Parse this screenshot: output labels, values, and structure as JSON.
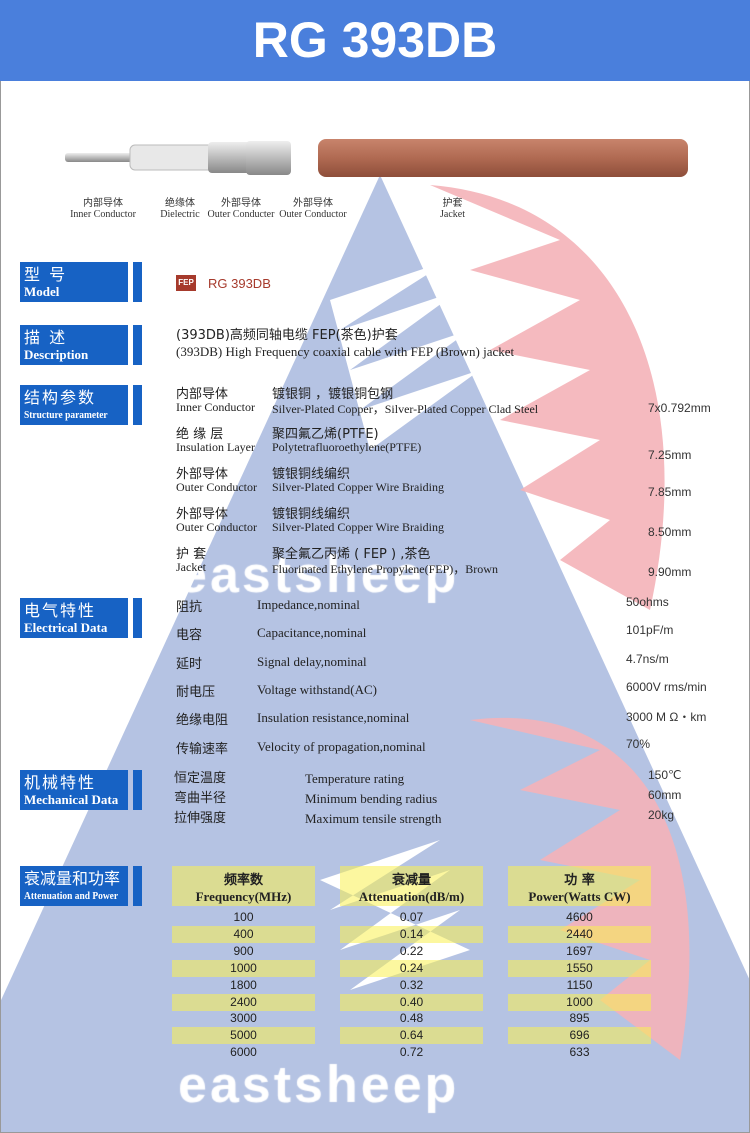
{
  "header": {
    "title": "RG 393DB"
  },
  "watermark": {
    "text": "eastsheep",
    "colors": {
      "blue": "#a8b8de",
      "pink": "#f4b3b8"
    }
  },
  "cable_labels": [
    {
      "cn": "内部导体",
      "en": "Inner Conductor"
    },
    {
      "cn": "绝缘体",
      "en": "Dielectric"
    },
    {
      "cn": "外部导体",
      "en": "Outer Conducter"
    },
    {
      "cn": "外部导体",
      "en": "Outer Conductor"
    },
    {
      "cn": "护套",
      "en": "Jacket"
    }
  ],
  "sections": {
    "model": {
      "cn": "型 号",
      "en": "Model",
      "badge": "FEP",
      "value": "RG 393DB"
    },
    "description": {
      "cn": "描 述",
      "en": "Description",
      "line_cn": "(393DB)高频同轴电缆   FEP(茶色)护套",
      "line_en": "(393DB)  High Frequency coaxial cable with FEP (Brown) jacket"
    },
    "structure": {
      "cn": "结构参数",
      "en": "Structure parameter",
      "items": [
        {
          "cn": "内部导体",
          "cn_val": "镀银铜 ，镀银铜包钢",
          "en": "Inner Conductor",
          "en_val": "Silver-Plated Copper，Silver-Plated Copper  Clad Steel",
          "value": "7x0.792mm"
        },
        {
          "cn": "绝 缘 层",
          "cn_val": "聚四氟乙烯(PTFE)",
          "en": "Insulation Layer",
          "en_val": "Polytetrafluoroethylene(PTFE)",
          "value": "7.25mm"
        },
        {
          "cn": "外部导体",
          "cn_val": "镀银铜线编织",
          "en": "Outer Conductor",
          "en_val": "Silver-Plated Copper Wire Braiding",
          "value": "7.85mm"
        },
        {
          "cn": "外部导体",
          "cn_val": "镀银铜线编织",
          "en": "Outer Conductor",
          "en_val": "Silver-Plated Copper Wire Braiding",
          "value": "8.50mm"
        },
        {
          "cn": "护      套",
          "cn_val": "聚全氟乙丙烯 ( FEP ) ,茶色",
          "en": "Jacket",
          "en_val": "Fluorinated Ethylene Propylene(FEP)，Brown",
          "value": "9.90mm"
        }
      ]
    },
    "electrical": {
      "cn": "电气特性",
      "en": "Electrical Data",
      "items": [
        {
          "cn": "阻抗",
          "en": "Impedance,nominal",
          "value": "50ohms"
        },
        {
          "cn": "电容",
          "en": "Capacitance,nominal",
          "value": "101pF/m"
        },
        {
          "cn": "延时",
          "en": "Signal delay,nominal",
          "value": "4.7ns/m"
        },
        {
          "cn": "耐电压",
          "en": "Voltage withstand(AC)",
          "value": "6000V rms/min"
        },
        {
          "cn": "绝缘电阻",
          "en": "Insulation resistance,nominal",
          "value": "3000 M Ω・km"
        },
        {
          "cn": "传输速率",
          "en": "Velocity of propagation,nominal",
          "value": "70%"
        }
      ]
    },
    "mechanical": {
      "cn": "机械特性",
      "en": "Mechanical Data",
      "items": [
        {
          "cn": "恒定温度",
          "en": "Temperature rating",
          "value": "150℃"
        },
        {
          "cn": "弯曲半径",
          "en": "Minimum bending radius",
          "value": "60mm"
        },
        {
          "cn": "拉伸强度",
          "en": "Maximum tensile strength",
          "value": "20kg"
        }
      ]
    },
    "attenuation": {
      "cn": "衰减量和功率",
      "en": "Attenuation and Power",
      "headers": [
        {
          "cn": "频率数",
          "en": "Frequency(MHz)"
        },
        {
          "cn": "衰减量",
          "en": "Attenuation(dB/m)"
        },
        {
          "cn": "功  率",
          "en": "Power(Watts CW)"
        }
      ],
      "rows": [
        [
          "100",
          "0.07",
          "4600"
        ],
        [
          "400",
          "0.14",
          "2440"
        ],
        [
          "900",
          "0.22",
          "1697"
        ],
        [
          "1000",
          "0.24",
          "1550"
        ],
        [
          "1800",
          "0.32",
          "1150"
        ],
        [
          "2400",
          "0.40",
          "1000"
        ],
        [
          "3000",
          "0.48",
          "895"
        ],
        [
          "5000",
          "0.64",
          "696"
        ],
        [
          "6000",
          "0.72",
          "633"
        ]
      ]
    }
  }
}
